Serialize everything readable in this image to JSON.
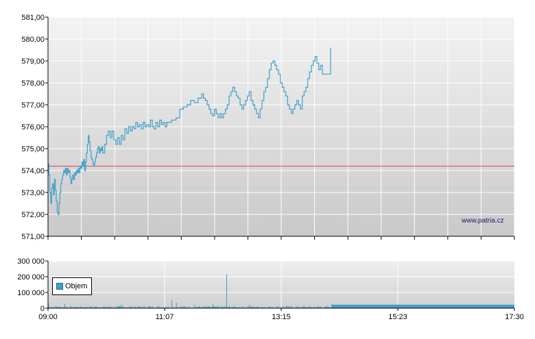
{
  "chart_data": [
    {
      "type": "line",
      "name_panel": "price",
      "y_ticks": [
        "571,00",
        "572,00",
        "573,00",
        "574,00",
        "575,00",
        "576,00",
        "577,00",
        "578,00",
        "579,00",
        "580,00",
        "581,00"
      ],
      "ylim": [
        571,
        581
      ],
      "xlim_minutes": [
        540,
        1050
      ],
      "reference_value": 574.2,
      "series": [
        {
          "points": [
            [
              540,
              574.3
            ],
            [
              541,
              573.8
            ],
            [
              542,
              573.0
            ],
            [
              543,
              572.5
            ],
            [
              544,
              573.2
            ],
            [
              545,
              573.4
            ],
            [
              546,
              572.9
            ],
            [
              547,
              573.6
            ],
            [
              548,
              573.1
            ],
            [
              549,
              572.6
            ],
            [
              550,
              572.1
            ],
            [
              551,
              572.0
            ],
            [
              552,
              572.5
            ],
            [
              553,
              573.0
            ],
            [
              554,
              573.4
            ],
            [
              555,
              573.6
            ],
            [
              556,
              573.8
            ],
            [
              557,
              574.0
            ],
            [
              558,
              573.9
            ],
            [
              559,
              574.1
            ],
            [
              560,
              573.8
            ],
            [
              561,
              574.1
            ],
            [
              562,
              573.9
            ],
            [
              563,
              574.0
            ],
            [
              564,
              573.7
            ],
            [
              565,
              573.4
            ],
            [
              566,
              573.6
            ],
            [
              567,
              573.8
            ],
            [
              568,
              573.6
            ],
            [
              569,
              573.9
            ],
            [
              570,
              573.8
            ],
            [
              571,
              574.0
            ],
            [
              572,
              573.9
            ],
            [
              573,
              574.1
            ],
            [
              574,
              573.9
            ],
            [
              575,
              574.2
            ],
            [
              576,
              574.1
            ],
            [
              577,
              574.4
            ],
            [
              578,
              574.2
            ],
            [
              579,
              574.5
            ],
            [
              580,
              574.0
            ],
            [
              581,
              574.4
            ],
            [
              582,
              574.8
            ],
            [
              583,
              575.2
            ],
            [
              584,
              575.6
            ],
            [
              585,
              575.3
            ],
            [
              586,
              574.9
            ],
            [
              587,
              574.6
            ],
            [
              588,
              574.5
            ],
            [
              589,
              574.3
            ],
            [
              590,
              574.2
            ],
            [
              591,
              574.4
            ],
            [
              592,
              574.6
            ],
            [
              593,
              574.8
            ],
            [
              594,
              575.0
            ],
            [
              595,
              575.1
            ],
            [
              596,
              574.8
            ],
            [
              597,
              575.0
            ],
            [
              598,
              574.9
            ],
            [
              599,
              575.1
            ],
            [
              600,
              574.8
            ],
            [
              602,
              575.2
            ],
            [
              604,
              575.6
            ],
            [
              606,
              575.8
            ],
            [
              608,
              575.5
            ],
            [
              610,
              575.8
            ],
            [
              612,
              575.4
            ],
            [
              614,
              575.2
            ],
            [
              616,
              575.5
            ],
            [
              618,
              575.2
            ],
            [
              620,
              575.6
            ],
            [
              622,
              575.4
            ],
            [
              624,
              575.9
            ],
            [
              626,
              575.7
            ],
            [
              628,
              576.0
            ],
            [
              630,
              575.8
            ],
            [
              632,
              576.0
            ],
            [
              634,
              575.9
            ],
            [
              636,
              576.2
            ],
            [
              638,
              576.0
            ],
            [
              640,
              576.1
            ],
            [
              642,
              575.9
            ],
            [
              644,
              576.2
            ],
            [
              646,
              576.0
            ],
            [
              648,
              576.1
            ],
            [
              650,
              576.0
            ],
            [
              652,
              576.3
            ],
            [
              654,
              576.0
            ],
            [
              656,
              575.9
            ],
            [
              658,
              576.2
            ],
            [
              660,
              576.0
            ],
            [
              662,
              576.3
            ],
            [
              664,
              576.1
            ],
            [
              666,
              576.2
            ],
            [
              668,
              576.0
            ],
            [
              670,
              576.2
            ],
            [
              675,
              576.3
            ],
            [
              680,
              576.4
            ],
            [
              684,
              576.8
            ],
            [
              688,
              576.9
            ],
            [
              692,
              577.0
            ],
            [
              696,
              577.2
            ],
            [
              700,
              577.1
            ],
            [
              704,
              577.3
            ],
            [
              708,
              577.5
            ],
            [
              710,
              577.3
            ],
            [
              712,
              577.2
            ],
            [
              714,
              577.0
            ],
            [
              716,
              576.8
            ],
            [
              718,
              576.6
            ],
            [
              720,
              576.5
            ],
            [
              722,
              576.8
            ],
            [
              724,
              576.6
            ],
            [
              726,
              576.4
            ],
            [
              728,
              576.6
            ],
            [
              730,
              576.4
            ],
            [
              732,
              576.6
            ],
            [
              734,
              576.8
            ],
            [
              736,
              577.0
            ],
            [
              738,
              577.4
            ],
            [
              740,
              577.6
            ],
            [
              742,
              577.8
            ],
            [
              744,
              577.6
            ],
            [
              746,
              577.4
            ],
            [
              748,
              577.3
            ],
            [
              750,
              577.0
            ],
            [
              752,
              576.8
            ],
            [
              754,
              577.0
            ],
            [
              756,
              577.2
            ],
            [
              758,
              577.4
            ],
            [
              760,
              577.6
            ],
            [
              762,
              577.2
            ],
            [
              764,
              577.0
            ],
            [
              766,
              576.8
            ],
            [
              768,
              576.6
            ],
            [
              770,
              576.4
            ],
            [
              772,
              576.8
            ],
            [
              774,
              577.2
            ],
            [
              776,
              577.6
            ],
            [
              778,
              577.8
            ],
            [
              780,
              578.2
            ],
            [
              782,
              578.6
            ],
            [
              784,
              578.9
            ],
            [
              786,
              579.0
            ],
            [
              788,
              578.8
            ],
            [
              790,
              578.6
            ],
            [
              792,
              578.4
            ],
            [
              794,
              578.0
            ],
            [
              796,
              577.8
            ],
            [
              798,
              577.6
            ],
            [
              800,
              577.4
            ],
            [
              802,
              577.0
            ],
            [
              804,
              576.8
            ],
            [
              806,
              576.6
            ],
            [
              808,
              576.8
            ],
            [
              810,
              577.0
            ],
            [
              812,
              577.2
            ],
            [
              814,
              577.0
            ],
            [
              816,
              576.8
            ],
            [
              818,
              577.4
            ],
            [
              820,
              577.6
            ],
            [
              822,
              577.8
            ],
            [
              824,
              578.2
            ],
            [
              826,
              578.5
            ],
            [
              828,
              578.8
            ],
            [
              830,
              579.0
            ],
            [
              832,
              579.2
            ],
            [
              834,
              578.9
            ],
            [
              836,
              578.6
            ],
            [
              838,
              578.8
            ],
            [
              840,
              578.4
            ],
            [
              842,
              578.4
            ],
            [
              844,
              578.4
            ],
            [
              846,
              578.4
            ],
            [
              848,
              578.4
            ],
            [
              849,
              579.6
            ]
          ]
        }
      ]
    },
    {
      "type": "bar",
      "name_panel": "volume",
      "y_ticks": [
        "0",
        "100 000",
        "200 000",
        "300 000"
      ],
      "ylim": [
        0,
        300000
      ],
      "x_ticks": [
        "09:00",
        "11:07",
        "13:15",
        "15:23",
        "17:30"
      ],
      "legend": [
        "Objem"
      ],
      "spikes": [
        [
          540,
          30000
        ],
        [
          558,
          25000
        ],
        [
          620,
          22000
        ],
        [
          675,
          50000
        ],
        [
          680,
          35000
        ],
        [
          700,
          20000
        ],
        [
          720,
          25000
        ],
        [
          735,
          215000
        ],
        [
          760,
          22000
        ],
        [
          800,
          18000
        ],
        [
          850,
          28000
        ]
      ]
    }
  ],
  "watermark": "www.patria.cz",
  "colors": {
    "line": "#3f9fc8",
    "reference": "#e04040",
    "bars": "#3f9fc8",
    "grid": "#ffffff",
    "plot_bg_top": "#f2f2f2",
    "plot_bg_bottom": "#c8c8c8"
  }
}
